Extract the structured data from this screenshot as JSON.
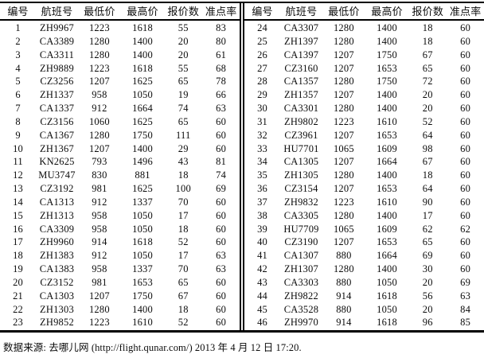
{
  "columns": [
    "编号",
    "航班号",
    "最低价",
    "最高价",
    "报价数",
    "准点率"
  ],
  "column_names_en": [
    "row-number",
    "flight-number",
    "min-price",
    "max-price",
    "quote-count",
    "ontime-rate"
  ],
  "tables": [
    {
      "rows": [
        [
          "1",
          "ZH9967",
          "1223",
          "1618",
          "55",
          "83"
        ],
        [
          "2",
          "CA3389",
          "1280",
          "1400",
          "20",
          "80"
        ],
        [
          "3",
          "CA3311",
          "1280",
          "1400",
          "20",
          "61"
        ],
        [
          "4",
          "ZH9889",
          "1223",
          "1618",
          "55",
          "68"
        ],
        [
          "5",
          "CZ3256",
          "1207",
          "1625",
          "65",
          "78"
        ],
        [
          "6",
          "ZH1337",
          "958",
          "1050",
          "19",
          "66"
        ],
        [
          "7",
          "CA1337",
          "912",
          "1664",
          "74",
          "63"
        ],
        [
          "8",
          "CZ3156",
          "1060",
          "1625",
          "65",
          "60"
        ],
        [
          "9",
          "CA1367",
          "1280",
          "1750",
          "111",
          "60"
        ],
        [
          "10",
          "ZH1367",
          "1207",
          "1400",
          "29",
          "60"
        ],
        [
          "11",
          "KN2625",
          "793",
          "1496",
          "43",
          "81"
        ],
        [
          "12",
          "MU3747",
          "830",
          "881",
          "18",
          "74"
        ],
        [
          "13",
          "CZ3192",
          "981",
          "1625",
          "100",
          "69"
        ],
        [
          "14",
          "CA1313",
          "912",
          "1337",
          "70",
          "60"
        ],
        [
          "15",
          "ZH1313",
          "958",
          "1050",
          "17",
          "60"
        ],
        [
          "16",
          "CA3309",
          "958",
          "1050",
          "18",
          "60"
        ],
        [
          "17",
          "ZH9960",
          "914",
          "1618",
          "52",
          "60"
        ],
        [
          "18",
          "ZH1383",
          "912",
          "1050",
          "17",
          "63"
        ],
        [
          "19",
          "CA1383",
          "958",
          "1337",
          "70",
          "63"
        ],
        [
          "20",
          "CZ3152",
          "981",
          "1653",
          "65",
          "60"
        ],
        [
          "21",
          "CA1303",
          "1207",
          "1750",
          "67",
          "60"
        ],
        [
          "22",
          "ZH1303",
          "1280",
          "1400",
          "18",
          "60"
        ],
        [
          "23",
          "ZH9852",
          "1223",
          "1610",
          "52",
          "60"
        ]
      ]
    },
    {
      "rows": [
        [
          "24",
          "CA3307",
          "1280",
          "1400",
          "18",
          "60"
        ],
        [
          "25",
          "ZH1397",
          "1280",
          "1400",
          "18",
          "60"
        ],
        [
          "26",
          "CA1397",
          "1207",
          "1750",
          "67",
          "60"
        ],
        [
          "27",
          "CZ3160",
          "1207",
          "1653",
          "65",
          "60"
        ],
        [
          "28",
          "CA1357",
          "1280",
          "1750",
          "72",
          "60"
        ],
        [
          "29",
          "ZH1357",
          "1207",
          "1400",
          "20",
          "60"
        ],
        [
          "30",
          "CA3301",
          "1280",
          "1400",
          "20",
          "60"
        ],
        [
          "31",
          "ZH9802",
          "1223",
          "1610",
          "52",
          "60"
        ],
        [
          "32",
          "CZ3961",
          "1207",
          "1653",
          "64",
          "60"
        ],
        [
          "33",
          "HU7701",
          "1065",
          "1609",
          "98",
          "60"
        ],
        [
          "34",
          "CA1305",
          "1207",
          "1664",
          "67",
          "60"
        ],
        [
          "35",
          "ZH1305",
          "1280",
          "1400",
          "18",
          "60"
        ],
        [
          "36",
          "CZ3154",
          "1207",
          "1653",
          "64",
          "60"
        ],
        [
          "37",
          "ZH9832",
          "1223",
          "1610",
          "90",
          "60"
        ],
        [
          "38",
          "CA3305",
          "1280",
          "1400",
          "17",
          "60"
        ],
        [
          "39",
          "HU7709",
          "1065",
          "1609",
          "62",
          "62"
        ],
        [
          "40",
          "CZ3190",
          "1207",
          "1653",
          "65",
          "60"
        ],
        [
          "41",
          "CA1307",
          "880",
          "1664",
          "69",
          "60"
        ],
        [
          "42",
          "ZH1307",
          "1280",
          "1400",
          "30",
          "60"
        ],
        [
          "43",
          "CA3303",
          "880",
          "1050",
          "20",
          "69"
        ],
        [
          "44",
          "ZH9822",
          "914",
          "1618",
          "56",
          "63"
        ],
        [
          "45",
          "CA3528",
          "880",
          "1050",
          "20",
          "84"
        ],
        [
          "46",
          "ZH9970",
          "914",
          "1618",
          "96",
          "85"
        ]
      ]
    }
  ],
  "footer": {
    "text": "数据来源: 去哪儿网 (http://flight.qunar.com/) 2013 年 4 月 12 日 17:20."
  },
  "colors": {
    "text": "#0c0c0c",
    "rule": "#000000",
    "background": "#ffffff"
  }
}
